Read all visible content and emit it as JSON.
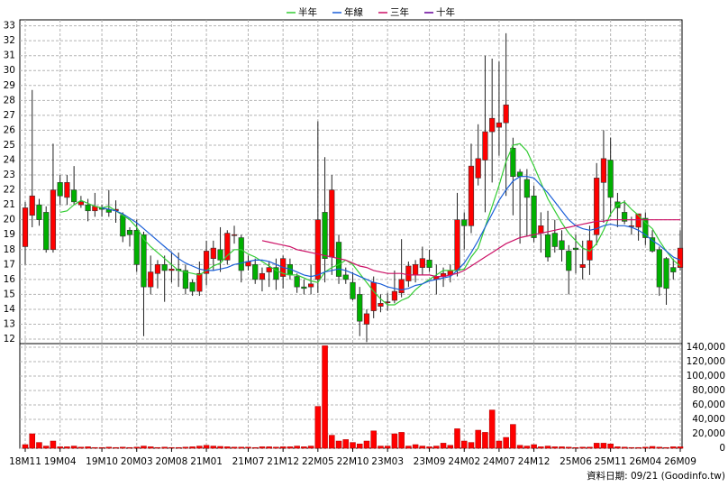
{
  "chart_data": [
    {
      "type": "candlestick",
      "categories": [
        "18M11",
        null,
        null,
        null,
        null,
        "19M04",
        null,
        null,
        null,
        null,
        null,
        "19M10",
        null,
        null,
        null,
        null,
        "20M03",
        null,
        null,
        null,
        null,
        "20M08",
        null,
        null,
        null,
        null,
        "21M01",
        null,
        null,
        null,
        null,
        null,
        "21M07",
        null,
        null,
        null,
        null,
        "21M12",
        null,
        null,
        null,
        null,
        "22M05",
        null,
        null,
        null,
        null,
        "22M10",
        null,
        null,
        null,
        null,
        "23M03",
        null,
        null,
        null,
        null,
        null,
        "23M09",
        null,
        null,
        null,
        null,
        "24M02",
        null,
        null,
        null,
        null,
        "24M07",
        null,
        null,
        null,
        null,
        "24M12",
        null,
        null,
        null,
        null,
        null,
        "25M06",
        null,
        null,
        null,
        null,
        "25M11",
        null,
        null,
        null,
        null,
        "26M04",
        null,
        null,
        null,
        null,
        "26M09"
      ],
      "open": [
        18.2,
        20.3,
        21.0,
        20.5,
        18.0,
        22.5,
        21.5,
        22.0,
        21.0,
        21.0,
        20.6,
        20.8,
        20.7,
        20.6,
        20.3,
        19.3,
        19.3,
        19.0,
        15.5,
        16.4,
        17.0,
        16.6,
        16.7,
        16.6,
        15.8,
        15.2,
        16.4,
        17.4,
        18.0,
        17.3,
        19.0,
        18.8,
        16.9,
        17.0,
        16.0,
        16.5,
        16.8,
        16.2,
        17.0,
        16.2,
        15.5,
        15.5,
        16.0,
        20.5,
        17.5,
        18.5,
        16.3,
        15.8,
        15.0,
        13.0,
        13.9,
        14.2,
        14.5,
        14.6,
        15.1,
        15.9,
        16.3,
        16.8,
        17.3,
        16.0,
        16.2,
        16.3,
        16.6,
        20.0,
        19.6,
        22.8,
        24.0,
        25.9,
        26.2,
        26.5,
        24.8,
        23.2,
        22.7,
        21.6,
        19.1,
        19.0,
        19.1,
        18.6,
        17.9,
        18.1,
        16.8,
        17.3,
        19.0,
        22.5,
        24.0,
        21.2,
        20.5,
        19.6,
        19.5,
        20.1,
        18.8,
        18.0,
        17.4,
        16.8,
        16.8
      ],
      "high": [
        21.2,
        28.7,
        21.4,
        20.9,
        25.1,
        23.0,
        23.0,
        23.6,
        21.6,
        21.4,
        21.8,
        21.0,
        22.0,
        21.3,
        20.5,
        19.5,
        20.0,
        19.2,
        17.6,
        17.3,
        17.6,
        17.8,
        17.8,
        17.0,
        16.0,
        17.2,
        18.6,
        18.6,
        19.5,
        19.3,
        19.6,
        19.0,
        17.6,
        17.4,
        16.8,
        17.2,
        17.4,
        17.6,
        17.4,
        16.4,
        16.0,
        17.0,
        26.6,
        24.2,
        23.0,
        19.0,
        16.8,
        16.5,
        15.5,
        14.0,
        16.2,
        15.0,
        15.1,
        16.6,
        18.7,
        17.2,
        17.3,
        18.2,
        18.0,
        17.0,
        16.8,
        17.0,
        21.8,
        20.5,
        25.1,
        26.4,
        31.0,
        30.8,
        30.6,
        32.5,
        25.5,
        23.4,
        23.4,
        22.3,
        20.5,
        20.6,
        20.0,
        19.3,
        18.3,
        19.0,
        18.6,
        19.6,
        23.8,
        26.0,
        25.5,
        21.8,
        21.3,
        20.2,
        20.2,
        20.5,
        19.3,
        18.2,
        17.5,
        17.4,
        19.3
      ],
      "low": [
        17.0,
        19.5,
        19.6,
        17.8,
        17.8,
        21.0,
        21.0,
        21.0,
        20.8,
        19.9,
        20.2,
        20.2,
        20.2,
        19.8,
        18.5,
        18.2,
        16.5,
        12.2,
        15.0,
        15.4,
        14.5,
        15.8,
        15.5,
        15.0,
        14.9,
        14.9,
        15.6,
        16.6,
        16.5,
        17.0,
        18.4,
        15.8,
        16.6,
        15.7,
        15.2,
        15.5,
        15.3,
        15.4,
        16.0,
        15.1,
        15.0,
        15.0,
        15.1,
        15.8,
        16.3,
        15.7,
        15.7,
        14.6,
        12.2,
        11.8,
        13.4,
        13.8,
        13.9,
        14.4,
        14.8,
        15.5,
        15.8,
        16.3,
        16.5,
        15.0,
        15.5,
        15.8,
        16.2,
        18.0,
        19.1,
        22.3,
        20.5,
        22.5,
        24.3,
        21.6,
        20.3,
        18.4,
        18.9,
        18.5,
        17.8,
        17.2,
        17.8,
        17.2,
        15.0,
        16.4,
        16.0,
        16.3,
        18.3,
        19.8,
        20.2,
        19.5,
        19.7,
        19.0,
        18.6,
        18.3,
        17.8,
        14.9,
        14.3,
        16.0,
        16.6
      ],
      "close": [
        20.8,
        21.6,
        20.0,
        18.0,
        22.0,
        21.6,
        22.5,
        21.2,
        21.2,
        20.6,
        20.9,
        20.7,
        20.5,
        20.7,
        18.9,
        19.0,
        17.0,
        15.5,
        16.5,
        17.0,
        16.6,
        16.7,
        16.6,
        15.4,
        15.2,
        16.4,
        17.9,
        18.1,
        17.3,
        19.1,
        19.0,
        16.6,
        17.2,
        16.0,
        16.4,
        16.8,
        16.0,
        17.4,
        16.3,
        15.5,
        15.4,
        15.7,
        20.0,
        17.4,
        22.0,
        16.2,
        16.0,
        14.7,
        13.2,
        13.7,
        15.8,
        14.4,
        14.5,
        15.2,
        16.0,
        16.9,
        17.0,
        17.4,
        16.8,
        16.2,
        16.4,
        16.6,
        20.0,
        19.6,
        23.6,
        24.1,
        25.9,
        26.8,
        26.5,
        27.7,
        22.9,
        22.9,
        21.5,
        18.8,
        19.6,
        17.5,
        18.2,
        18.0,
        16.6,
        18.0,
        17.0,
        18.6,
        22.8,
        24.1,
        21.5,
        20.8,
        19.9,
        19.6,
        20.4,
        18.8,
        17.9,
        15.5,
        15.4,
        16.5,
        18.1
      ],
      "up_color": "#ff0000",
      "down_color": "#00b000",
      "series": [
        {
          "name": "半年",
          "color": "#33cc33",
          "values": [
            null,
            null,
            null,
            null,
            null,
            20.5,
            20.6,
            21.0,
            21.3,
            21.1,
            20.9,
            20.8,
            20.9,
            20.6,
            20.3,
            20.0,
            19.5,
            18.7,
            18.2,
            17.8,
            17.4,
            17.0,
            16.6,
            16.5,
            16.4,
            16.3,
            16.6,
            16.9,
            17.1,
            17.6,
            18.0,
            18.0,
            17.7,
            17.5,
            17.2,
            16.9,
            16.6,
            16.4,
            16.3,
            16.3,
            16.1,
            15.9,
            15.8,
            16.5,
            16.8,
            17.0,
            17.3,
            17.0,
            16.4,
            15.8,
            15.2,
            14.7,
            14.3,
            14.3,
            14.6,
            14.8,
            15.3,
            15.7,
            16.0,
            16.3,
            16.6,
            16.6,
            16.6,
            16.7,
            17.5,
            18.1,
            19.5,
            20.9,
            22.3,
            23.9,
            25.0,
            25.1,
            24.6,
            23.6,
            22.5,
            21.4,
            20.6,
            19.8,
            19.1,
            18.6,
            18.1,
            17.9,
            18.4,
            19.3,
            20.4,
            21.0,
            21.2,
            20.7,
            20.3,
            19.8,
            19.4,
            18.6,
            17.9,
            17.3,
            16.9
          ]
        },
        {
          "name": "年線",
          "color": "#1a5fd8",
          "values": [
            null,
            null,
            null,
            null,
            null,
            null,
            null,
            null,
            null,
            null,
            null,
            20.8,
            20.7,
            20.6,
            20.4,
            20.1,
            19.8,
            19.4,
            19.0,
            18.6,
            18.2,
            17.8,
            17.4,
            17.1,
            16.9,
            16.7,
            16.6,
            16.6,
            16.7,
            16.8,
            17.0,
            17.1,
            17.2,
            17.3,
            17.3,
            17.2,
            17.0,
            16.8,
            16.7,
            16.5,
            16.3,
            16.2,
            16.3,
            16.5,
            16.6,
            16.7,
            16.6,
            16.4,
            16.2,
            16.0,
            15.8,
            15.7,
            15.5,
            15.4,
            15.3,
            15.4,
            15.6,
            15.7,
            15.9,
            16.0,
            16.1,
            16.2,
            16.6,
            17.1,
            17.8,
            18.6,
            19.5,
            20.4,
            21.3,
            22.0,
            22.6,
            22.9,
            22.9,
            22.8,
            22.3,
            21.8,
            21.2,
            20.6,
            20.0,
            19.6,
            19.4,
            19.3,
            19.4,
            19.6,
            19.7,
            19.6,
            19.6,
            19.5,
            19.3,
            19.0,
            18.6,
            18.3,
            17.9,
            17.5,
            17.3
          ]
        },
        {
          "name": "三年",
          "color": "#cc1166",
          "values": [
            null,
            null,
            null,
            null,
            null,
            null,
            null,
            null,
            null,
            null,
            null,
            null,
            null,
            null,
            null,
            null,
            null,
            null,
            null,
            null,
            null,
            null,
            null,
            null,
            null,
            null,
            null,
            null,
            null,
            null,
            null,
            null,
            null,
            null,
            18.6,
            18.5,
            18.4,
            18.3,
            18.2,
            18.0,
            17.9,
            17.8,
            17.7,
            17.6,
            17.5,
            17.4,
            17.3,
            17.1,
            16.9,
            16.8,
            16.6,
            16.5,
            16.4,
            16.4,
            16.4,
            16.3,
            16.3,
            16.3,
            16.3,
            16.2,
            16.2,
            16.3,
            16.4,
            16.6,
            16.9,
            17.2,
            17.5,
            17.8,
            18.1,
            18.4,
            18.6,
            18.8,
            18.9,
            19.0,
            19.1,
            19.2,
            19.3,
            19.4,
            19.5,
            19.6,
            19.7,
            19.8,
            19.9,
            19.9,
            20.0,
            20.0,
            20.0,
            20.0,
            20.0,
            20.0,
            20.0,
            20.0,
            20.0,
            20.0,
            20.0
          ]
        },
        {
          "name": "十年",
          "color": "#660099",
          "values": [
            null,
            null,
            null,
            null,
            null,
            null,
            null,
            null,
            null,
            null,
            null,
            null,
            null,
            null,
            null,
            null,
            null,
            null,
            null,
            null,
            null,
            null,
            null,
            null,
            null,
            null,
            null,
            null,
            null,
            null,
            null,
            null,
            null,
            null,
            null,
            null,
            null,
            null,
            null,
            null,
            null,
            null,
            null,
            null,
            null,
            null,
            null,
            null,
            null,
            null,
            null,
            null,
            null,
            null,
            null,
            null,
            null,
            null,
            null,
            null,
            null,
            null,
            null,
            null,
            null,
            null,
            null,
            null,
            null,
            null,
            null,
            null,
            null,
            null,
            null,
            null,
            null,
            null,
            null,
            null,
            null,
            null,
            null,
            null,
            null,
            null,
            null,
            null,
            null,
            null,
            null,
            null,
            null,
            null,
            null
          ]
        }
      ],
      "ylim": [
        11.7,
        33.4
      ],
      "yticks": [
        12,
        13,
        14,
        15,
        16,
        17,
        18,
        19,
        20,
        21,
        22,
        23,
        24,
        25,
        26,
        27,
        28,
        29,
        30,
        31,
        32,
        33
      ],
      "grid": true
    },
    {
      "type": "bar",
      "values": [
        5000,
        20000,
        8000,
        3000,
        10000,
        2000,
        2000,
        3000,
        1500,
        2000,
        1000,
        1000,
        1500,
        1000,
        1500,
        1000,
        1500,
        3000,
        2000,
        1000,
        1500,
        1000,
        1000,
        1500,
        2000,
        3000,
        4000,
        3000,
        2500,
        2000,
        1500,
        1500,
        1500,
        1000,
        2000,
        2000,
        1500,
        2000,
        2000,
        3000,
        2000,
        3000,
        58000,
        142000,
        18000,
        10000,
        12000,
        8000,
        6000,
        10000,
        24000,
        3000,
        3000,
        20000,
        22000,
        3000,
        5000,
        3000,
        2000,
        3000,
        7000,
        4000,
        27000,
        10000,
        8000,
        25000,
        22000,
        53000,
        10000,
        15000,
        33000,
        4000,
        3000,
        5000,
        2000,
        3000,
        2000,
        2000,
        1500,
        1000,
        1500,
        1500,
        7000,
        7000,
        6000,
        2000,
        1500,
        1000,
        1000,
        1500,
        2500,
        1500,
        1000,
        2000,
        2000
      ],
      "color": "#ff0000",
      "ylim": [
        0,
        145000
      ],
      "yticks": [
        0,
        {
          "value": 20000,
          "label": "20,000"
        },
        {
          "value": 40000,
          "label": "40,000"
        },
        {
          "value": 60000,
          "label": "60,000"
        },
        {
          "value": 80000,
          "label": "80,000"
        },
        {
          "value": 100000,
          "label": "100,000"
        },
        {
          "value": 120000,
          "label": "120,000"
        },
        {
          "value": 140000,
          "label": "140,000"
        }
      ],
      "grid": true
    }
  ],
  "footer": "資料日期: 09/21 (Goodinfo.tw)"
}
